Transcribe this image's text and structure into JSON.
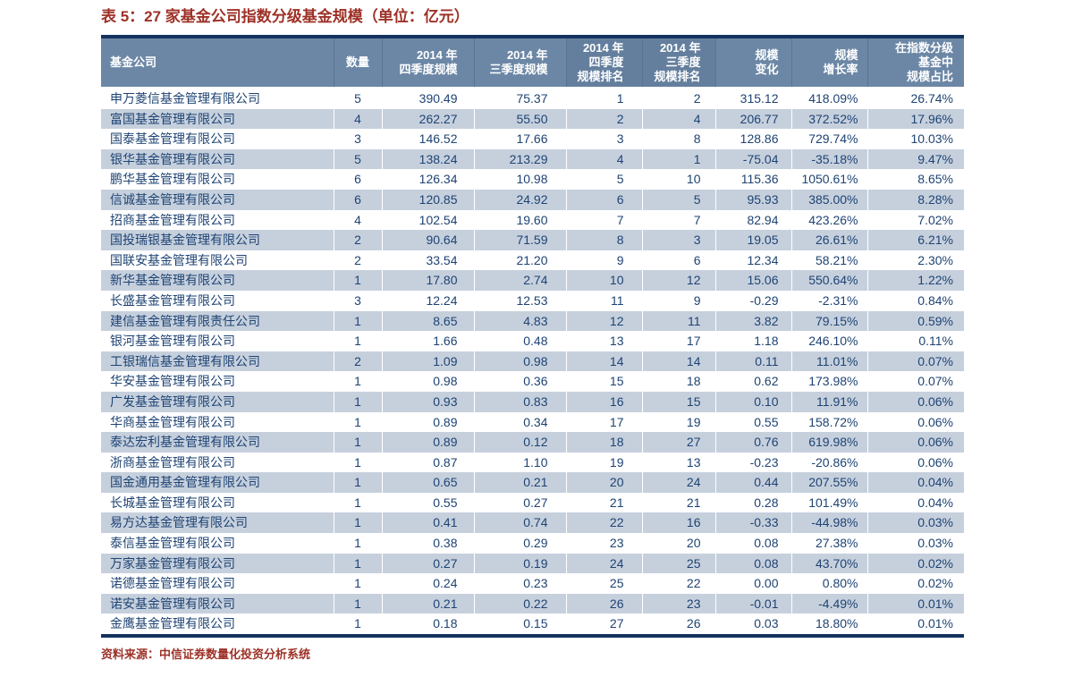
{
  "title": "表 5：27 家基金公司指数分级基金规模（单位：亿元）",
  "colors": {
    "title_red": "#9D3127",
    "border_navy": "#14325E",
    "header_bg": "#6C87A6",
    "header_bg_dark": "#647F9E",
    "row_stripe": "#C6D0DD",
    "body_text": "#1E4373",
    "header_text": "#FFFFFF"
  },
  "table": {
    "columns": [
      {
        "label": "基金公司"
      },
      {
        "label": "数量"
      },
      {
        "label": "2014 年\n四季度规模"
      },
      {
        "label": "2014 年\n三季度规模"
      },
      {
        "label": "2014 年\n四季度\n规模排名"
      },
      {
        "label": "2014 年\n三季度\n规模排名"
      },
      {
        "label": "规模\n变化"
      },
      {
        "label": "规模\n增长率"
      },
      {
        "label": "在指数分级\n基金中\n规模占比"
      }
    ],
    "rows": [
      [
        "申万菱信基金管理有限公司",
        "5",
        "390.49",
        "75.37",
        "1",
        "2",
        "315.12",
        "418.09%",
        "26.74%"
      ],
      [
        "富国基金管理有限公司",
        "4",
        "262.27",
        "55.50",
        "2",
        "4",
        "206.77",
        "372.52%",
        "17.96%"
      ],
      [
        "国泰基金管理有限公司",
        "3",
        "146.52",
        "17.66",
        "3",
        "8",
        "128.86",
        "729.74%",
        "10.03%"
      ],
      [
        "银华基金管理有限公司",
        "5",
        "138.24",
        "213.29",
        "4",
        "1",
        "-75.04",
        "-35.18%",
        "9.47%"
      ],
      [
        "鹏华基金管理有限公司",
        "6",
        "126.34",
        "10.98",
        "5",
        "10",
        "115.36",
        "1050.61%",
        "8.65%"
      ],
      [
        "信诚基金管理有限公司",
        "6",
        "120.85",
        "24.92",
        "6",
        "5",
        "95.93",
        "385.00%",
        "8.28%"
      ],
      [
        "招商基金管理有限公司",
        "4",
        "102.54",
        "19.60",
        "7",
        "7",
        "82.94",
        "423.26%",
        "7.02%"
      ],
      [
        "国投瑞银基金管理有限公司",
        "2",
        "90.64",
        "71.59",
        "8",
        "3",
        "19.05",
        "26.61%",
        "6.21%"
      ],
      [
        "国联安基金管理有限公司",
        "2",
        "33.54",
        "21.20",
        "9",
        "6",
        "12.34",
        "58.21%",
        "2.30%"
      ],
      [
        "新华基金管理有限公司",
        "1",
        "17.80",
        "2.74",
        "10",
        "12",
        "15.06",
        "550.64%",
        "1.22%"
      ],
      [
        "长盛基金管理有限公司",
        "3",
        "12.24",
        "12.53",
        "11",
        "9",
        "-0.29",
        "-2.31%",
        "0.84%"
      ],
      [
        "建信基金管理有限责任公司",
        "1",
        "8.65",
        "4.83",
        "12",
        "11",
        "3.82",
        "79.15%",
        "0.59%"
      ],
      [
        "银河基金管理有限公司",
        "1",
        "1.66",
        "0.48",
        "13",
        "17",
        "1.18",
        "246.10%",
        "0.11%"
      ],
      [
        "工银瑞信基金管理有限公司",
        "2",
        "1.09",
        "0.98",
        "14",
        "14",
        "0.11",
        "11.01%",
        "0.07%"
      ],
      [
        "华安基金管理有限公司",
        "1",
        "0.98",
        "0.36",
        "15",
        "18",
        "0.62",
        "173.98%",
        "0.07%"
      ],
      [
        "广发基金管理有限公司",
        "1",
        "0.93",
        "0.83",
        "16",
        "15",
        "0.10",
        "11.91%",
        "0.06%"
      ],
      [
        "华商基金管理有限公司",
        "1",
        "0.89",
        "0.34",
        "17",
        "19",
        "0.55",
        "158.72%",
        "0.06%"
      ],
      [
        "泰达宏利基金管理有限公司",
        "1",
        "0.89",
        "0.12",
        "18",
        "27",
        "0.76",
        "619.98%",
        "0.06%"
      ],
      [
        "浙商基金管理有限公司",
        "1",
        "0.87",
        "1.10",
        "19",
        "13",
        "-0.23",
        "-20.86%",
        "0.06%"
      ],
      [
        "国金通用基金管理有限公司",
        "1",
        "0.65",
        "0.21",
        "20",
        "24",
        "0.44",
        "207.55%",
        "0.04%"
      ],
      [
        "长城基金管理有限公司",
        "1",
        "0.55",
        "0.27",
        "21",
        "21",
        "0.28",
        "101.49%",
        "0.04%"
      ],
      [
        "易方达基金管理有限公司",
        "1",
        "0.41",
        "0.74",
        "22",
        "16",
        "-0.33",
        "-44.98%",
        "0.03%"
      ],
      [
        "泰信基金管理有限公司",
        "1",
        "0.38",
        "0.29",
        "23",
        "20",
        "0.08",
        "27.38%",
        "0.03%"
      ],
      [
        "万家基金管理有限公司",
        "1",
        "0.27",
        "0.19",
        "24",
        "25",
        "0.08",
        "43.70%",
        "0.02%"
      ],
      [
        "诺德基金管理有限公司",
        "1",
        "0.24",
        "0.23",
        "25",
        "22",
        "0.00",
        "0.80%",
        "0.02%"
      ],
      [
        "诺安基金管理有限公司",
        "1",
        "0.21",
        "0.22",
        "26",
        "23",
        "-0.01",
        "-4.49%",
        "0.01%"
      ],
      [
        "金鹰基金管理有限公司",
        "1",
        "0.18",
        "0.15",
        "27",
        "26",
        "0.03",
        "18.80%",
        "0.01%"
      ]
    ],
    "cell_names": [
      "company-name",
      "fund-count",
      "q4-2014-scale",
      "q3-2014-scale",
      "q4-2014-rank",
      "q3-2014-rank",
      "scale-change",
      "scale-growth-rate",
      "share-in-graded-index-funds"
    ]
  },
  "footer": {
    "source": "资料来源：中信证券数量化投资分析系统"
  }
}
